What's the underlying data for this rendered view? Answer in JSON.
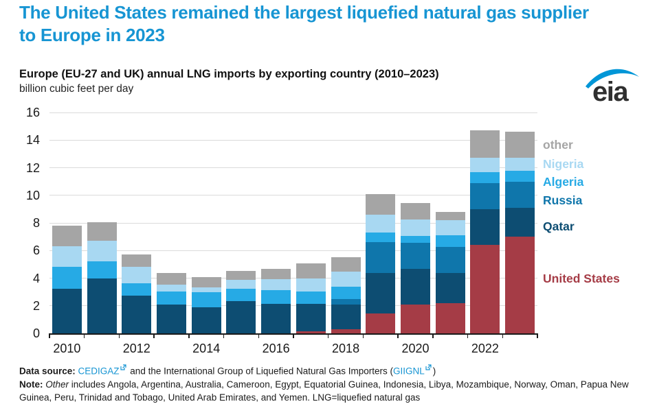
{
  "header": {
    "title": "The United States remained the largest liquefied natural gas supplier to Europe in 2023"
  },
  "logo": {
    "text": "eia",
    "swoosh_color": "#0096d7"
  },
  "chart": {
    "subtitle": "Europe (EU-27 and UK) annual LNG imports by exporting country (2010–2023)",
    "unit": "billion cubic feet per day"
  },
  "chart_data": {
    "type": "bar",
    "stacked": true,
    "title": "Europe (EU-27 and UK) annual LNG imports by exporting country (2010–2023)",
    "ylabel": "billion cubic feet per day",
    "ylim": [
      0,
      16
    ],
    "ytick_step": 2,
    "grid": true,
    "legend_position": "right",
    "categories": [
      "2010",
      "2011",
      "2012",
      "2013",
      "2014",
      "2015",
      "2016",
      "2017",
      "2018",
      "2019",
      "2020",
      "2021",
      "2022",
      "2023"
    ],
    "x_tick_labels": [
      "2010",
      "2012",
      "2014",
      "2016",
      "2018",
      "2020",
      "2022"
    ],
    "series": [
      {
        "name": "United States",
        "color": "#a53c46",
        "values": [
          0,
          0,
          0,
          0,
          0,
          0,
          0,
          0.15,
          0.3,
          1.45,
          2.1,
          2.2,
          6.4,
          7.0
        ]
      },
      {
        "name": "Qatar",
        "color": "#0d4d72",
        "values": [
          3.25,
          4.0,
          2.75,
          2.1,
          1.9,
          2.35,
          2.15,
          2.0,
          1.8,
          2.9,
          2.55,
          2.15,
          2.6,
          2.1
        ]
      },
      {
        "name": "Russia",
        "color": "#0f76ab",
        "values": [
          0,
          0,
          0,
          0,
          0,
          0,
          0,
          0,
          0.4,
          2.25,
          1.9,
          1.9,
          1.9,
          1.9
        ]
      },
      {
        "name": "Algeria",
        "color": "#26aae5",
        "values": [
          1.55,
          1.2,
          0.9,
          0.95,
          1.1,
          0.9,
          1.0,
          0.9,
          0.9,
          0.7,
          0.5,
          0.85,
          0.8,
          0.8
        ]
      },
      {
        "name": "Nigeria",
        "color": "#a8d8f2",
        "values": [
          1.5,
          1.5,
          1.15,
          0.5,
          0.35,
          0.65,
          0.8,
          0.95,
          1.05,
          1.3,
          1.2,
          1.1,
          1.0,
          0.9
        ]
      },
      {
        "name": "other",
        "color": "#a5a5a5",
        "values": [
          1.5,
          1.35,
          0.9,
          0.8,
          0.75,
          0.6,
          0.7,
          1.05,
          1.05,
          1.5,
          1.2,
          0.6,
          2.0,
          1.9
        ]
      }
    ],
    "legend_labels": [
      "other",
      "Nigeria",
      "Algeria",
      "Russia",
      "Qatar",
      "United States"
    ]
  },
  "footer": {
    "source_label": "Data source: ",
    "source_link1": "CEDIGAZ",
    "source_mid": " and the International Group of Liquefied Natural Gas Importers (",
    "source_link2": "GIIGNL",
    "source_end": ")",
    "note_label": "Note: ",
    "note_italic": "Other",
    "note_text": " includes Angola, Argentina, Australia, Cameroon, Egypt, Equatorial Guinea, Indonesia, Libya, Mozambique, Norway, Oman, Papua New Guinea, Peru, Trinidad and Tobago, United Arab Emirates, and Yemen. LNG=liquefied natural gas"
  }
}
